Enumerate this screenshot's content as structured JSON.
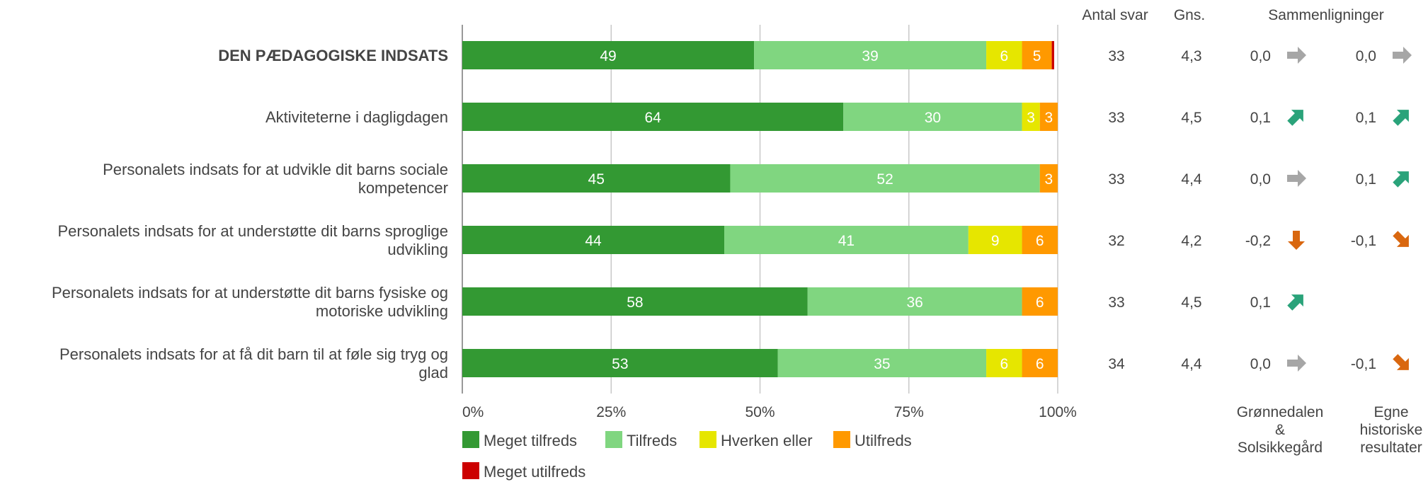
{
  "chart_data": {
    "type": "bar",
    "orientation": "horizontal",
    "stacked": true,
    "categories": [
      "DEN PÆDAGOGISKE INDSATS",
      "Aktiviteterne i dagligdagen",
      "Personalets indsats for at udvikle dit barns sociale kompetencer",
      "Personalets indsats for at understøtte dit barns sproglige udvikling",
      "Personalets indsats for at understøtte dit barns fysiske og motoriske udvikling",
      "Personalets indsats for at få dit barn til at føle sig tryg og glad"
    ],
    "category_lines": [
      [
        "DEN PÆDAGOGISKE INDSATS"
      ],
      [
        "Aktiviteterne i dagligdagen"
      ],
      [
        "Personalets indsats for at udvikle dit barns sociale",
        "kompetencer"
      ],
      [
        "Personalets indsats for at understøtte dit barns sproglige",
        "udvikling"
      ],
      [
        "Personalets indsats for at understøtte dit barns fysiske og",
        "motoriske udvikling"
      ],
      [
        "Personalets indsats for at få dit barn til at føle sig tryg og",
        "glad"
      ]
    ],
    "bold_category": 0,
    "series": [
      {
        "name": "Meget tilfreds",
        "color": "#339933",
        "values": [
          49,
          64,
          45,
          44,
          58,
          53
        ]
      },
      {
        "name": "Tilfreds",
        "color": "#80d680",
        "values": [
          39,
          30,
          52,
          41,
          36,
          35
        ]
      },
      {
        "name": "Hverken eller",
        "color": "#e6e600",
        "values": [
          6,
          3,
          0,
          9,
          0,
          6
        ]
      },
      {
        "name": "Utilfreds",
        "color": "#ff9900",
        "values": [
          5,
          3,
          3,
          6,
          6,
          6
        ]
      },
      {
        "name": "Meget utilfreds",
        "color": "#cc0000",
        "values": [
          0.4,
          0,
          0,
          0,
          0,
          0
        ]
      }
    ],
    "data_labels": [
      [
        "49",
        "39",
        "6",
        "5",
        ""
      ],
      [
        "64",
        "30",
        "3",
        "3",
        ""
      ],
      [
        "45",
        "52",
        "",
        "3",
        ""
      ],
      [
        "44",
        "41",
        "9",
        "6",
        ""
      ],
      [
        "58",
        "36",
        "",
        "6",
        ""
      ],
      [
        "53",
        "35",
        "6",
        "6",
        ""
      ]
    ],
    "xlim": [
      0,
      100
    ],
    "xticks": [
      "0%",
      "25%",
      "50%",
      "75%",
      "100%"
    ],
    "grid": true,
    "legend_position": "bottom"
  },
  "table": {
    "headers": {
      "antal": "Antal svar",
      "gns": "Gns.",
      "sammen": "Sammenligninger"
    },
    "rows": [
      {
        "antal": "33",
        "gns": "4,3",
        "cmp1": "0,0",
        "arrow1": "flat",
        "cmp2": "0,0",
        "arrow2": "flat"
      },
      {
        "antal": "33",
        "gns": "4,5",
        "cmp1": "0,1",
        "arrow1": "up",
        "cmp2": "0,1",
        "arrow2": "up"
      },
      {
        "antal": "33",
        "gns": "4,4",
        "cmp1": "0,0",
        "arrow1": "flat",
        "cmp2": "0,1",
        "arrow2": "up"
      },
      {
        "antal": "32",
        "gns": "4,2",
        "cmp1": "-0,2",
        "arrow1": "down",
        "cmp2": "-0,1",
        "arrow2": "down-slight"
      },
      {
        "antal": "33",
        "gns": "4,5",
        "cmp1": "0,1",
        "arrow1": "up",
        "cmp2": "",
        "arrow2": ""
      },
      {
        "antal": "34",
        "gns": "4,4",
        "cmp1": "0,0",
        "arrow1": "flat",
        "cmp2": "-0,1",
        "arrow2": "down-slight"
      }
    ],
    "footer1": [
      "Grønnedalen",
      "&",
      "Solsikkegård"
    ],
    "footer2": [
      "Egne",
      "historiske",
      "resultater"
    ]
  },
  "colors": {
    "arrow_flat": "#a6a6a6",
    "arrow_up": "#2aa37a",
    "arrow_down": "#d9670f",
    "grid": "#c8c8c8",
    "axis": "#999999"
  }
}
